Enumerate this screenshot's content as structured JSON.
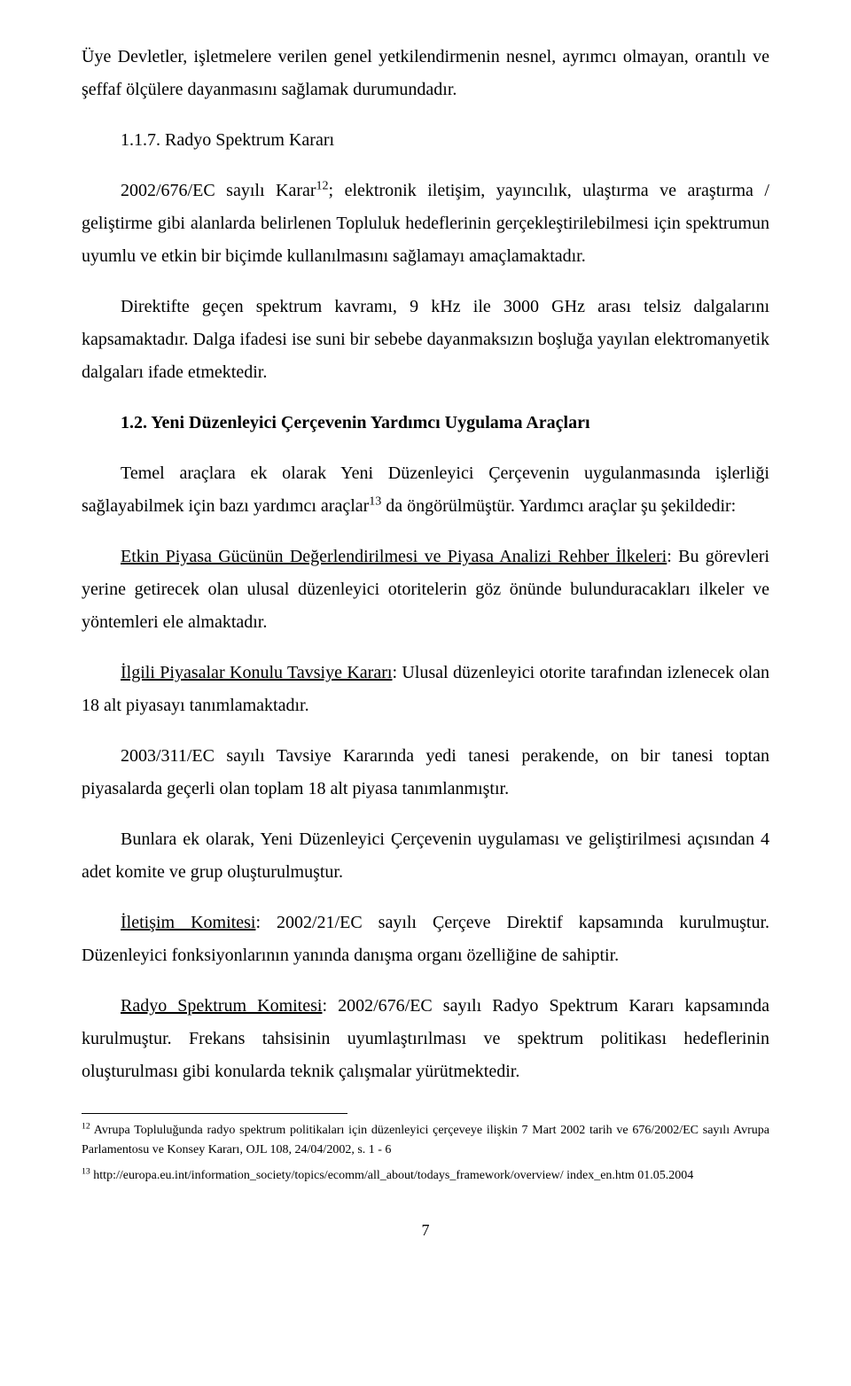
{
  "paragraphs": {
    "p1": "Üye Devletler, işletmelere verilen genel yetkilendirmenin nesnel, ayrımcı olmayan, orantılı ve şeffaf ölçülere dayanmasını sağlamak durumundadır.",
    "h117": "1.1.7. Radyo Spektrum Kararı",
    "p2a": "2002/676/EC sayılı Karar",
    "p2_sup": "12",
    "p2b": "; elektronik iletişim, yayıncılık, ulaştırma ve araştırma / geliştirme gibi alanlarda belirlenen Topluluk hedeflerinin gerçekleştirilebilmesi için spektrumun uyumlu ve etkin bir biçimde kullanılmasını sağlamayı amaçlamaktadır.",
    "p3": "Direktifte geçen spektrum kavramı, 9 kHz ile 3000 GHz arası telsiz dalgalarını kapsamaktadır. Dalga ifadesi ise suni bir sebebe dayanmaksızın boşluğa yayılan elektromanyetik dalgaları ifade etmektedir.",
    "h12": "1.2. Yeni Düzenleyici Çerçevenin Yardımcı Uygulama Araçları",
    "p4a": "Temel araçlara ek olarak Yeni Düzenleyici Çerçevenin uygulanmasında işlerliği sağlayabilmek için bazı yardımcı araçlar",
    "p4_sup": "13",
    "p4b": " da öngörülmüştür. Yardımcı araçlar şu şekildedir:",
    "p5_u": "Etkin Piyasa Gücünün Değerlendirilmesi ve Piyasa Analizi Rehber İlkeleri",
    "p5_rest": ": Bu görevleri yerine getirecek olan ulusal düzenleyici otoritelerin göz önünde bulunduracakları ilkeler ve yöntemleri ele almaktadır.",
    "p6_u": "İlgili Piyasalar Konulu Tavsiye Kararı",
    "p6_rest": ": Ulusal düzenleyici otorite tarafından izlenecek olan 18 alt piyasayı tanımlamaktadır.",
    "p7": "2003/311/EC sayılı Tavsiye Kararında yedi tanesi perakende, on bir tanesi toptan piyasalarda geçerli olan toplam 18 alt piyasa tanımlanmıştır.",
    "p8": "Bunlara ek olarak, Yeni Düzenleyici Çerçevenin uygulaması ve geliştirilmesi açısından 4 adet komite ve grup oluşturulmuştur.",
    "p9_u": "İletişim Komitesi",
    "p9_rest": ": 2002/21/EC sayılı Çerçeve Direktif kapsamında kurulmuştur. Düzenleyici fonksiyonlarının yanında danışma organı özelliğine de sahiptir.",
    "p10_u": "Radyo Spektrum Komitesi",
    "p10_rest": ": 2002/676/EC sayılı Radyo Spektrum Kararı kapsamında kurulmuştur. Frekans tahsisinin uyumlaştırılması ve spektrum politikası hedeflerinin oluşturulması gibi konularda teknik çalışmalar yürütmektedir."
  },
  "footnotes": {
    "fn12_num": "12",
    "fn12_text": " Avrupa Topluluğunda radyo spektrum politikaları için düzenleyici çerçeveye ilişkin 7 Mart 2002 tarih ve 676/2002/EC sayılı Avrupa Parlamentosu ve Konsey Kararı, OJL 108, 24/04/2002, s. 1 - 6",
    "fn13_num": "13",
    "fn13_text": " http://europa.eu.int/information_society/topics/ecomm/all_about/todays_framework/overview/ index_en.htm 01.05.2004"
  },
  "pageNumber": "7"
}
